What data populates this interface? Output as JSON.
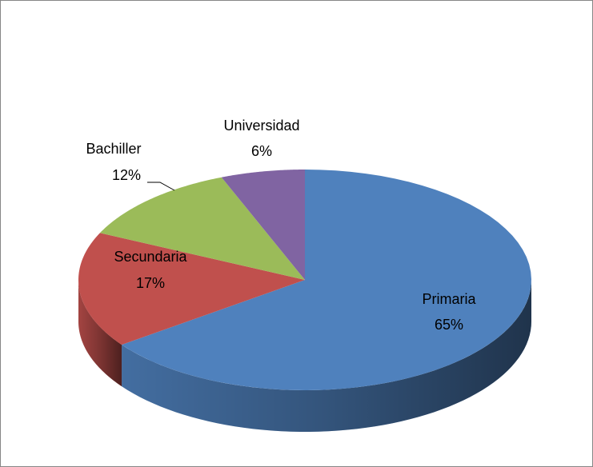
{
  "chart_data": {
    "type": "pie",
    "categories": [
      "Primaria",
      "Secundaria",
      "Bachiller",
      "Universidad"
    ],
    "values": [
      65,
      17,
      12,
      6
    ],
    "value_labels": [
      "65%",
      "17%",
      "12%",
      "6%"
    ],
    "colors": [
      "#4f81bd",
      "#c0504d",
      "#9bbb59",
      "#8064a2"
    ]
  }
}
